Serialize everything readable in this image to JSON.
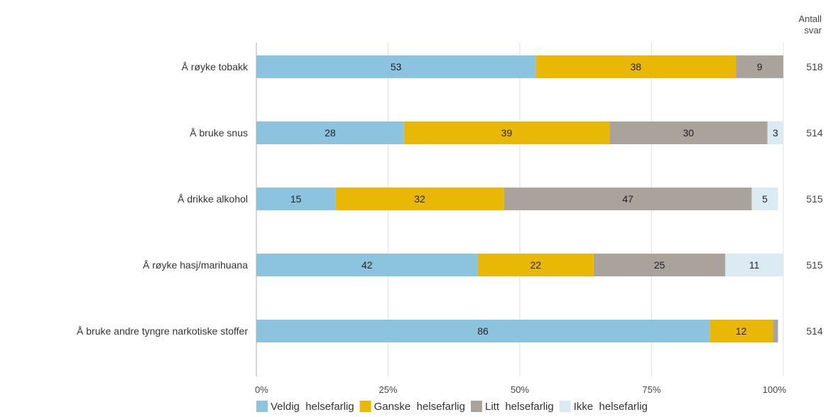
{
  "chart_data": {
    "type": "bar",
    "orientation": "horizontal",
    "stacked": true,
    "categories": [
      "Å røyke tobakk",
      "Å bruke snus",
      "Å drikke alkohol",
      "Å røyke hasj/marihuana",
      "Å bruke andre tyngre narkotiske stoffer"
    ],
    "series": [
      {
        "name": "Veldig  helsefarlig",
        "color": "#8cc3df",
        "values": [
          53,
          28,
          15,
          42,
          86
        ]
      },
      {
        "name": "Ganske  helsefarlig",
        "color": "#e9b806",
        "values": [
          38,
          39,
          32,
          22,
          12
        ]
      },
      {
        "name": "Litt  helsefarlig",
        "color": "#aaa39c",
        "values": [
          9,
          30,
          47,
          25,
          1
        ]
      },
      {
        "name": "Ikke  helsefarlig",
        "color": "#dceaf4",
        "values": [
          0,
          3,
          5,
          11,
          0
        ]
      }
    ],
    "data_labels": [
      [
        "53",
        "38",
        "9",
        ""
      ],
      [
        "28",
        "39",
        "30",
        "3"
      ],
      [
        "15",
        "32",
        "47",
        "5"
      ],
      [
        "42",
        "22",
        "25",
        "11"
      ],
      [
        "86",
        "12",
        "",
        ""
      ]
    ],
    "xlim": [
      0,
      100
    ],
    "xticks": [
      "0%",
      "25%",
      "50%",
      "75%",
      "100%"
    ],
    "grid": true,
    "legend_position": "bottom",
    "count_header": [
      "Antall",
      "svar"
    ],
    "counts": [
      "518",
      "514",
      "515",
      "515",
      "514"
    ]
  }
}
